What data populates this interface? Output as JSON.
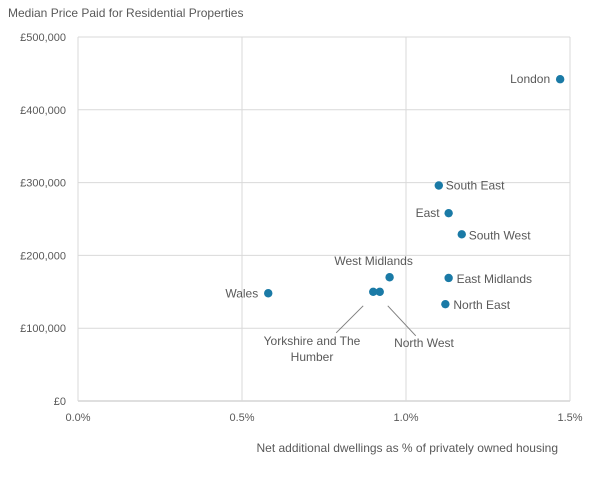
{
  "chart_data": {
    "type": "scatter",
    "title": "Median Price Paid for Residential Properties",
    "xlabel": "Net additional dwellings as % of privately owned housing",
    "ylabel": "",
    "xlim": [
      0,
      1.5
    ],
    "ylim": [
      0,
      500000
    ],
    "x_ticks": [
      0,
      0.5,
      1.0,
      1.5
    ],
    "x_tick_labels": [
      "0.0%",
      "0.5%",
      "1.0%",
      "1.5%"
    ],
    "y_ticks": [
      0,
      100000,
      200000,
      300000,
      400000,
      500000
    ],
    "y_tick_labels": [
      "£0",
      "£100,000",
      "£200,000",
      "£300,000",
      "£400,000",
      "£500,000"
    ],
    "grid": true,
    "marker_color": "#1a7aa6",
    "points": [
      {
        "label": "London",
        "x": 1.47,
        "y": 442000
      },
      {
        "label": "South East",
        "x": 1.1,
        "y": 296000
      },
      {
        "label": "East",
        "x": 1.13,
        "y": 258000
      },
      {
        "label": "South West",
        "x": 1.17,
        "y": 229000
      },
      {
        "label": "East Midlands",
        "x": 1.13,
        "y": 169000
      },
      {
        "label": "North East",
        "x": 1.12,
        "y": 133000
      },
      {
        "label": "West Midlands",
        "x": 0.95,
        "y": 170000
      },
      {
        "label": "Yorkshire and The Humber",
        "x": 0.9,
        "y": 150000
      },
      {
        "label": "North West",
        "x": 0.92,
        "y": 150000
      },
      {
        "label": "Wales",
        "x": 0.58,
        "y": 148000
      }
    ]
  }
}
